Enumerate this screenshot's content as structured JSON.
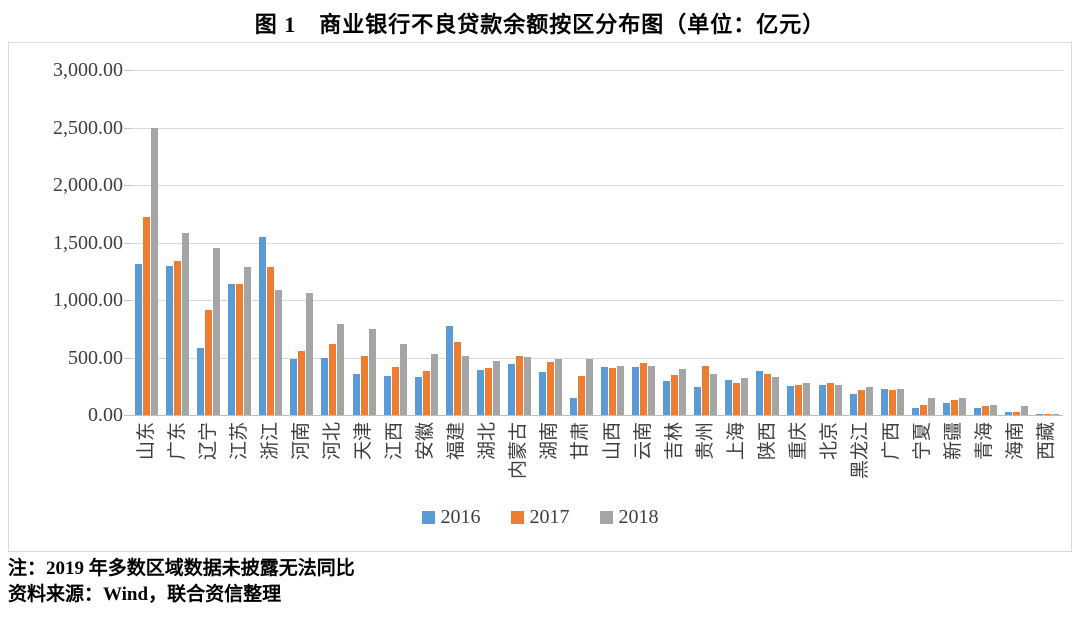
{
  "title": "图 1　商业银行不良贷款余额按区分布图（单位：亿元）",
  "notes": {
    "note": "注：2019 年多数区域数据未披露无法同比",
    "source": "资料来源：Wind，联合资信整理"
  },
  "chart_data": {
    "type": "bar",
    "title": "图 1　商业银行不良贷款余额按区分布图（单位：亿元）",
    "unit": "亿元",
    "xlabel": "",
    "ylabel": "",
    "ylim": [
      0,
      3000
    ],
    "ytick_step": 500,
    "ytick_labels": [
      "0.00",
      "500.00",
      "1,000.00",
      "1,500.00",
      "2,000.00",
      "2,500.00",
      "3,000.00"
    ],
    "grid": true,
    "legend_position": "bottom",
    "categories": [
      "山东",
      "广东",
      "辽宁",
      "江苏",
      "浙江",
      "河南",
      "河北",
      "天津",
      "江西",
      "安徽",
      "福建",
      "湖北",
      "内蒙古",
      "湖南",
      "甘肃",
      "山西",
      "云南",
      "吉林",
      "贵州",
      "上海",
      "陕西",
      "重庆",
      "北京",
      "黑龙江",
      "广西",
      "宁夏",
      "新疆",
      "青海",
      "海南",
      "西藏"
    ],
    "series": [
      {
        "name": "2016",
        "color": "#5B9BD5",
        "values": [
          1310,
          1300,
          580,
          1140,
          1550,
          490,
          495,
          360,
          340,
          330,
          770,
          390,
          440,
          370,
          150,
          420,
          420,
          295,
          240,
          305,
          385,
          255,
          260,
          180,
          230,
          65,
          105,
          60,
          25,
          4
        ]
      },
      {
        "name": "2017",
        "color": "#ED7D31",
        "values": [
          1720,
          1335,
          910,
          1140,
          1290,
          560,
          615,
          515,
          420,
          385,
          635,
          410,
          515,
          465,
          340,
          410,
          455,
          345,
          430,
          280,
          360,
          265,
          275,
          220,
          215,
          85,
          130,
          75,
          30,
          5
        ]
      },
      {
        "name": "2018",
        "color": "#A5A5A5",
        "values": [
          2500,
          1585,
          1450,
          1290,
          1090,
          1060,
          790,
          750,
          615,
          530,
          515,
          470,
          505,
          485,
          485,
          430,
          430,
          400,
          360,
          320,
          330,
          280,
          265,
          245,
          225,
          145,
          150,
          90,
          75,
          9
        ]
      }
    ]
  }
}
